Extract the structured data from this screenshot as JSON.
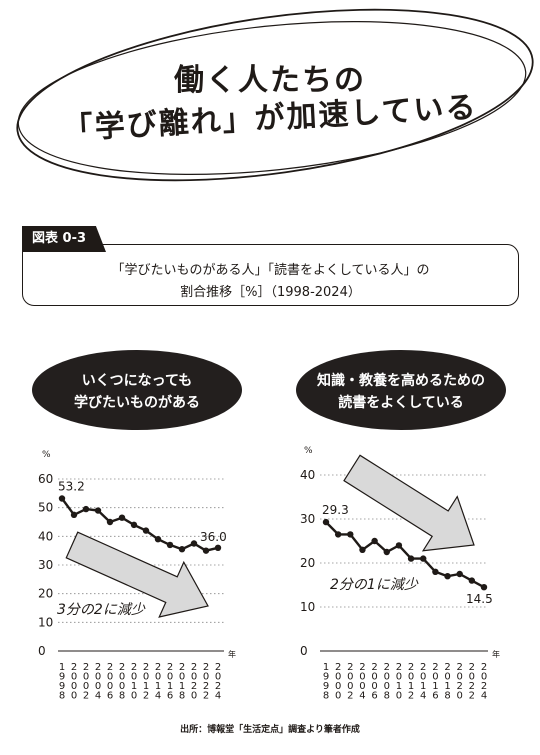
{
  "title": {
    "line1": "働く人たちの",
    "line2": "「学び離れ」が加速している"
  },
  "figure": {
    "tag": "図表 0-3",
    "caption_line1": "「学びたいものがある人」「読書をよくしている人」の",
    "caption_line2": "割合推移［%］（1998-2024）"
  },
  "source": "出所：博報堂「生活定点」調査より筆者作成",
  "chart_data": [
    {
      "type": "line",
      "title": "いくつになっても学びたいものがある",
      "title_lines": [
        "いくつになっても",
        "学びたいものがある"
      ],
      "ylabel": "%",
      "xlabel": "年",
      "ylim": [
        0,
        60
      ],
      "yticks": [
        0,
        10,
        20,
        30,
        40,
        50,
        60
      ],
      "grid": "dotted-horizontal",
      "x": [
        1998,
        2000,
        2002,
        2004,
        2006,
        2008,
        2010,
        2012,
        2014,
        2016,
        2018,
        2020,
        2022,
        2024
      ],
      "x_tick_labels": [
        "1998",
        "2000",
        "2002",
        "2004",
        "2006",
        "2008",
        "2010",
        "2012",
        "2014",
        "2016",
        "2018",
        "2020",
        "2022",
        "2024"
      ],
      "values": [
        53.2,
        47.5,
        49.5,
        49.0,
        45.0,
        46.5,
        44.0,
        42.0,
        39.0,
        37.0,
        35.5,
        37.5,
        35.0,
        36.0
      ],
      "data_labels": [
        {
          "x": 1998,
          "text": "53.2"
        },
        {
          "x": 2024,
          "text": "36.0"
        }
      ],
      "annotation": "3分の2に減少",
      "arrow_color": "#d9d9d9"
    },
    {
      "type": "line",
      "title": "知識・教養を高めるための読書をよくしている",
      "title_lines": [
        "知識・教養を高めるための",
        "読書をよくしている"
      ],
      "ylabel": "%",
      "xlabel": "年",
      "ylim": [
        0,
        40
      ],
      "yticks": [
        0,
        10,
        20,
        30,
        40
      ],
      "grid": "dotted-horizontal",
      "x": [
        1998,
        2000,
        2002,
        2004,
        2006,
        2008,
        2010,
        2012,
        2014,
        2016,
        2018,
        2020,
        2022,
        2024
      ],
      "x_tick_labels": [
        "1998",
        "2000",
        "2002",
        "2004",
        "2006",
        "2008",
        "2010",
        "2012",
        "2014",
        "2016",
        "2018",
        "2020",
        "2022",
        "2024"
      ],
      "values": [
        29.3,
        26.5,
        26.5,
        23.0,
        25.0,
        22.5,
        24.0,
        21.0,
        21.0,
        18.0,
        17.0,
        17.5,
        16.0,
        14.5
      ],
      "data_labels": [
        {
          "x": 1998,
          "text": "29.3"
        },
        {
          "x": 2024,
          "text": "14.5"
        }
      ],
      "annotation": "2分の1に減少",
      "arrow_color": "#d9d9d9"
    }
  ]
}
